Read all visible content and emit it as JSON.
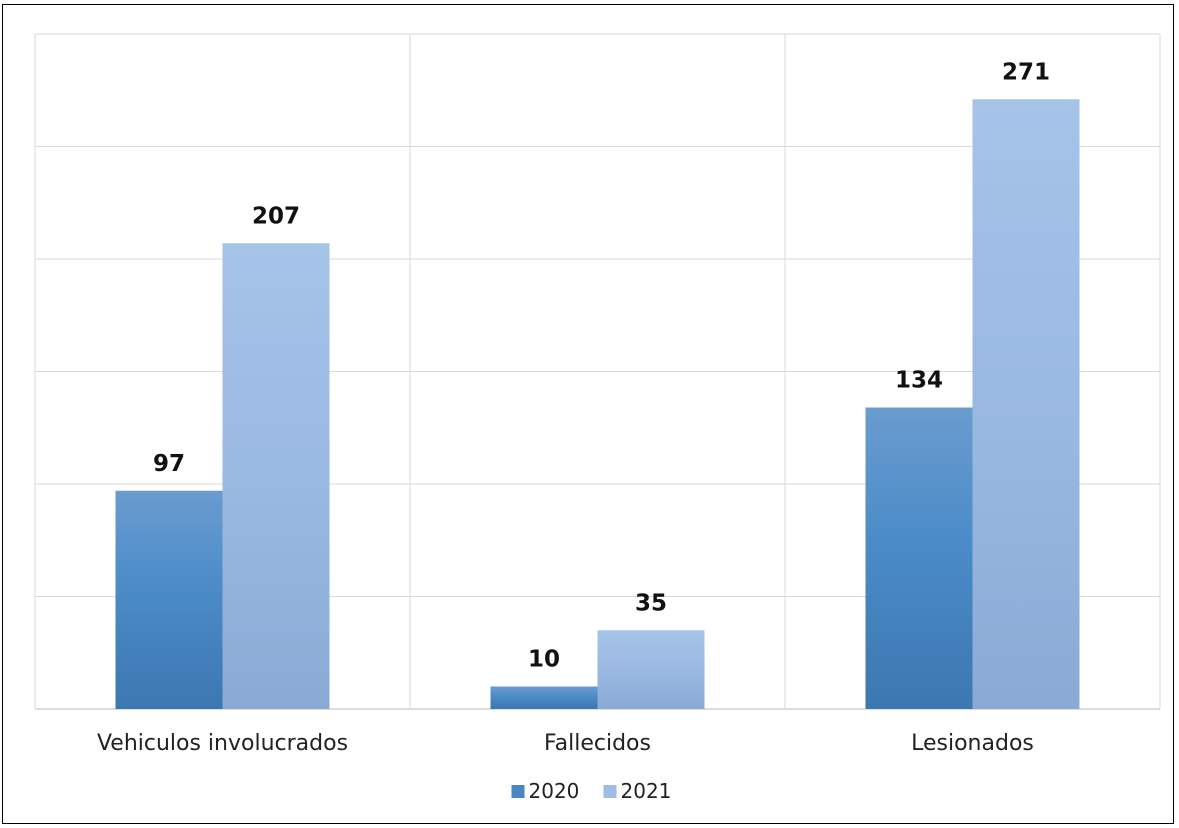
{
  "chart_data": {
    "type": "bar",
    "title": "",
    "xlabel": "",
    "ylabel": "",
    "categories": [
      "Vehiculos involucrados",
      "Fallecidos",
      "Lesionados"
    ],
    "series": [
      {
        "name": "2020",
        "values": [
          97,
          10,
          134
        ],
        "color": "#4a86c0"
      },
      {
        "name": "2021",
        "values": [
          207,
          35,
          271
        ],
        "color": "#9dbde4"
      }
    ],
    "ylim": [
      0,
      300
    ],
    "grid": true,
    "legend": "bottom-center",
    "data_labels": true
  }
}
